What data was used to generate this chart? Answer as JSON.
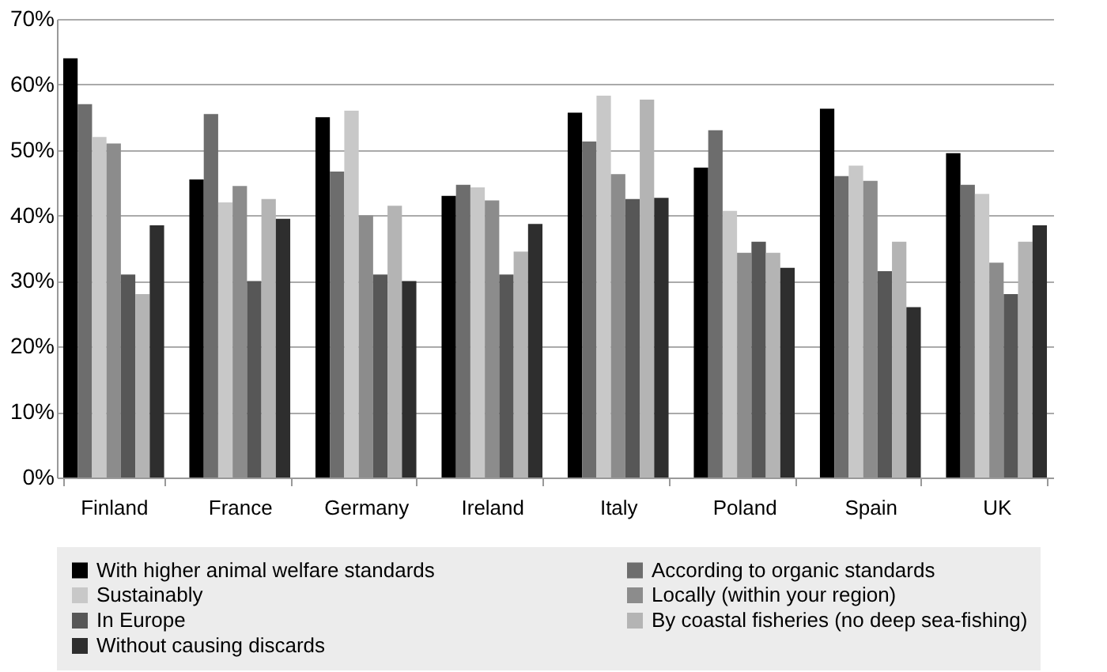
{
  "chart_data": {
    "type": "bar",
    "categories": [
      "Finland",
      "France",
      "Germany",
      "Ireland",
      "Italy",
      "Poland",
      "Spain",
      "UK"
    ],
    "series": [
      {
        "name": "With higher animal welfare standards",
        "color": "#000000",
        "values": [
          64,
          45.5,
          55,
          43,
          55.7,
          47.3,
          56.3,
          49.5
        ]
      },
      {
        "name": "According to organic standards",
        "color": "#6d6d6d",
        "values": [
          57,
          55.5,
          46.7,
          44.7,
          51.3,
          53,
          46,
          44.7
        ]
      },
      {
        "name": "Sustainably",
        "color": "#c8c8c8",
        "values": [
          52,
          42,
          56,
          44.3,
          58.3,
          40.7,
          47.6,
          43.3
        ]
      },
      {
        "name": "Locally (within your region)",
        "color": "#8c8c8c",
        "values": [
          51,
          44.5,
          40,
          42.3,
          46.3,
          34.3,
          45.3,
          32.8
        ]
      },
      {
        "name": "In Europe",
        "color": "#575757",
        "values": [
          31,
          30,
          31,
          31,
          42.5,
          36,
          31.5,
          28
        ]
      },
      {
        "name": "By coastal fisheries (no deep sea-fishing)",
        "color": "#b4b4b4",
        "values": [
          28,
          42.5,
          41.5,
          34.5,
          57.7,
          34.3,
          36,
          36
        ]
      },
      {
        "name": "Without causing discards",
        "color": "#2e2e2e",
        "values": [
          38.5,
          39.5,
          30,
          38.7,
          42.7,
          32,
          26,
          38.5
        ]
      }
    ],
    "ylim": [
      0,
      70
    ],
    "yticks": [
      {
        "value": 0,
        "label": "0%"
      },
      {
        "value": 10,
        "label": "10%"
      },
      {
        "value": 20,
        "label": "20%"
      },
      {
        "value": 30,
        "label": "30%"
      },
      {
        "value": 40,
        "label": "40%"
      },
      {
        "value": 50,
        "label": "50%"
      },
      {
        "value": 60,
        "label": "60%"
      },
      {
        "value": 70,
        "label": "70%"
      }
    ],
    "grid": "y",
    "legend": "bottom"
  }
}
